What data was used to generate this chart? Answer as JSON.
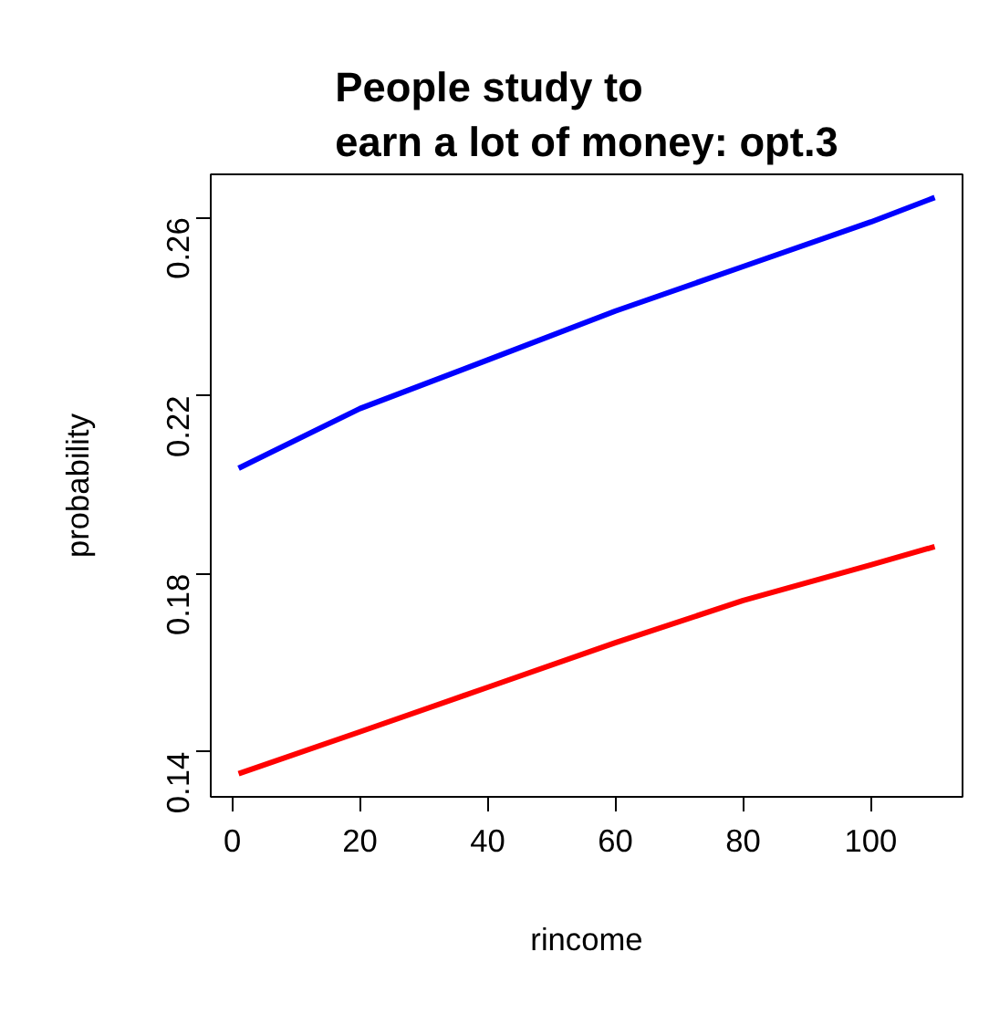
{
  "chart_data": {
    "type": "line",
    "title": "People study to\nearn a lot of money: opt.3",
    "xlabel": "rincome",
    "ylabel": "probability",
    "x": [
      1,
      20,
      40,
      60,
      80,
      100,
      110
    ],
    "series": [
      {
        "color": "#0000ff",
        "values": [
          0.2037,
          0.2171,
          0.228,
          0.239,
          0.249,
          0.259,
          0.2645
        ]
      },
      {
        "color": "#ff0000",
        "values": [
          0.1351,
          0.1445,
          0.1545,
          0.1645,
          0.174,
          0.182,
          0.1861
        ]
      }
    ],
    "xlim": [
      -3.36,
      114.36
    ],
    "ylim": [
      0.1299,
      0.2697
    ],
    "xticks": [
      0,
      20,
      40,
      60,
      80,
      100
    ],
    "yticks": [
      0.14,
      0.18,
      0.22,
      0.26
    ],
    "grid": false,
    "marker": "none",
    "line_style": "solid"
  }
}
